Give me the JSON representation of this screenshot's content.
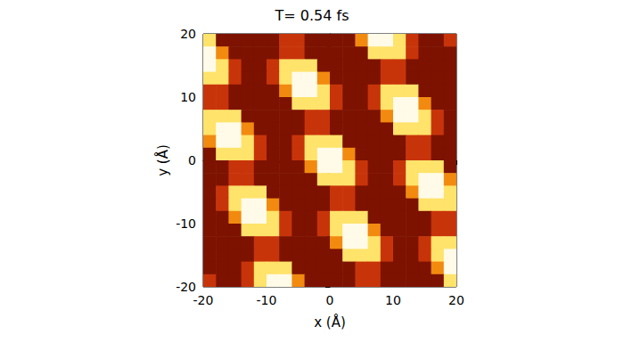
{
  "chart_data": {
    "type": "heatmap",
    "title": "T= 0.54 fs",
    "x_label": "x (Å)",
    "y_label": "y (Å)",
    "xlim": [
      -20,
      20
    ],
    "ylim": [
      -20,
      20
    ],
    "xticks": [
      -20,
      -10,
      0,
      10,
      20
    ],
    "yticks": [
      -20,
      -10,
      0,
      10,
      20
    ],
    "grid": false,
    "x": [
      -19,
      -17,
      -15,
      -13,
      -11,
      -9,
      -7,
      -5,
      -3,
      -1,
      1,
      3,
      5,
      7,
      9,
      11,
      13,
      15,
      17,
      19
    ],
    "y": [
      19,
      17,
      15,
      13,
      11,
      9,
      7,
      5,
      3,
      1,
      -1,
      -3,
      -5,
      -7,
      -9,
      -11,
      -13,
      -15,
      -17,
      -19
    ],
    "cells": [
      [
        3,
        0,
        0,
        0,
        0,
        0,
        1,
        1,
        0,
        0,
        0,
        0,
        2,
        4,
        4,
        3,
        1,
        0,
        0,
        1
      ],
      [
        4,
        2,
        0,
        0,
        0,
        0,
        1,
        1,
        0,
        0,
        0,
        0,
        0,
        3,
        3,
        3,
        1,
        0,
        0,
        0
      ],
      [
        4,
        3,
        1,
        0,
        0,
        1,
        3,
        3,
        3,
        0,
        0,
        0,
        0,
        0,
        1,
        1,
        0,
        0,
        0,
        0
      ],
      [
        3,
        3,
        1,
        0,
        0,
        1,
        3,
        4,
        4,
        2,
        0,
        0,
        0,
        0,
        1,
        1,
        0,
        0,
        0,
        0
      ],
      [
        1,
        1,
        0,
        0,
        0,
        0,
        2,
        4,
        4,
        3,
        1,
        0,
        0,
        1,
        3,
        3,
        3,
        0,
        0,
        0
      ],
      [
        1,
        1,
        0,
        0,
        0,
        0,
        0,
        3,
        3,
        3,
        1,
        0,
        0,
        1,
        3,
        4,
        4,
        2,
        0,
        0
      ],
      [
        3,
        3,
        3,
        0,
        0,
        0,
        0,
        0,
        1,
        1,
        0,
        0,
        0,
        0,
        2,
        4,
        4,
        3,
        1,
        0
      ],
      [
        3,
        4,
        4,
        2,
        0,
        0,
        0,
        0,
        1,
        1,
        0,
        0,
        0,
        0,
        0,
        3,
        3,
        3,
        1,
        0
      ],
      [
        2,
        4,
        4,
        3,
        1,
        0,
        0,
        1,
        3,
        3,
        3,
        0,
        0,
        0,
        0,
        0,
        1,
        1,
        0,
        0
      ],
      [
        0,
        3,
        3,
        3,
        1,
        0,
        0,
        1,
        3,
        4,
        4,
        2,
        0,
        0,
        0,
        0,
        1,
        1,
        0,
        0
      ],
      [
        0,
        0,
        1,
        1,
        0,
        0,
        0,
        0,
        2,
        4,
        4,
        3,
        1,
        0,
        0,
        1,
        3,
        3,
        3,
        0
      ],
      [
        0,
        0,
        1,
        1,
        0,
        0,
        0,
        0,
        0,
        3,
        3,
        3,
        1,
        0,
        0,
        1,
        3,
        4,
        4,
        2
      ],
      [
        0,
        1,
        3,
        3,
        3,
        0,
        0,
        0,
        0,
        0,
        1,
        1,
        0,
        0,
        0,
        0,
        2,
        4,
        4,
        3
      ],
      [
        0,
        1,
        3,
        4,
        4,
        2,
        0,
        0,
        0,
        0,
        1,
        1,
        0,
        0,
        0,
        0,
        0,
        3,
        3,
        3
      ],
      [
        0,
        0,
        2,
        4,
        4,
        3,
        1,
        0,
        0,
        1,
        3,
        3,
        3,
        0,
        0,
        0,
        0,
        0,
        1,
        1
      ],
      [
        0,
        0,
        0,
        3,
        3,
        3,
        1,
        0,
        0,
        1,
        3,
        4,
        4,
        2,
        0,
        0,
        0,
        0,
        1,
        1
      ],
      [
        0,
        0,
        0,
        0,
        1,
        1,
        0,
        0,
        0,
        0,
        2,
        4,
        4,
        3,
        1,
        0,
        0,
        1,
        3,
        3
      ],
      [
        0,
        0,
        0,
        0,
        1,
        1,
        0,
        0,
        0,
        0,
        0,
        3,
        3,
        3,
        1,
        0,
        0,
        1,
        3,
        4
      ],
      [
        0,
        0,
        0,
        1,
        3,
        3,
        3,
        0,
        0,
        0,
        0,
        0,
        1,
        1,
        0,
        0,
        0,
        0,
        2,
        4
      ],
      [
        1,
        0,
        0,
        1,
        3,
        4,
        4,
        2,
        0,
        0,
        0,
        0,
        1,
        1,
        0,
        0,
        0,
        0,
        0,
        3
      ]
    ]
  }
}
